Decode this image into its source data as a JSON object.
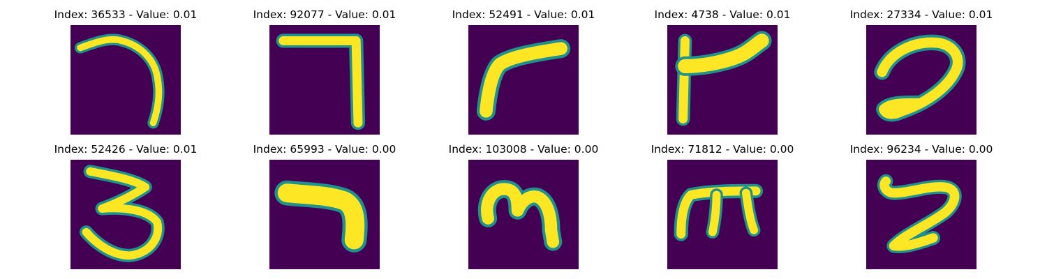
{
  "colors": {
    "background": "#440154",
    "stroke": "#fde725",
    "edge": "#21918c"
  },
  "panels": [
    {
      "title": "Index: 36533 - Value: 0.01",
      "glyph": "hook-seven"
    },
    {
      "title": "Index: 92077 - Value: 0.01",
      "glyph": "seven"
    },
    {
      "title": "Index: 52491 - Value: 0.01",
      "glyph": "bent-stroke"
    },
    {
      "title": "Index: 4738 - Value: 0.01",
      "glyph": "flag-shape"
    },
    {
      "title": "Index: 27334 - Value: 0.01",
      "glyph": "curved-two"
    },
    {
      "title": "Index: 52426 - Value: 0.01",
      "glyph": "three"
    },
    {
      "title": "Index: 65993 - Value: 0.00",
      "glyph": "thick-bent-bar"
    },
    {
      "title": "Index: 103008 - Value: 0.00",
      "glyph": "m-shape"
    },
    {
      "title": "Index: 71812 - Value: 0.00",
      "glyph": "m-serif-shape"
    },
    {
      "title": "Index: 96234 - Value: 0.00",
      "glyph": "z-curve"
    }
  ]
}
